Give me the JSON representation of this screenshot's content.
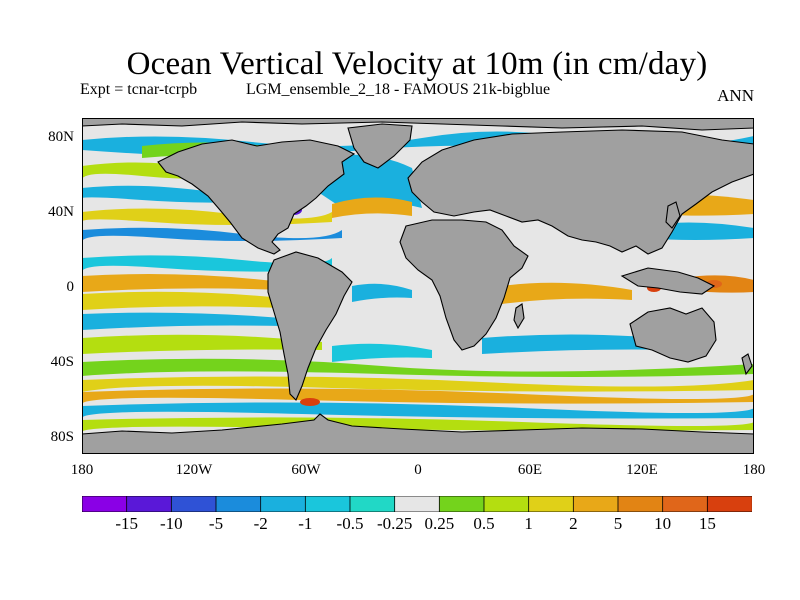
{
  "title": "Ocean Vertical Velocity at 10m (in cm/day)",
  "experiment": "Expt = tcnar-tcrpb",
  "run": "LGM_ensemble_2_18 - FAMOUS 21k-bigblue",
  "season": "ANN",
  "lat_labels": [
    "80N",
    "40N",
    "0",
    "40S",
    "80S"
  ],
  "lon_labels": [
    "180",
    "120W",
    "60W",
    "0",
    "60E",
    "120E",
    "180"
  ],
  "colorbar": {
    "labels": [
      "-15",
      "-10",
      "-5",
      "-2",
      "-1",
      "-0.5",
      "-0.25",
      "0.25",
      "0.5",
      "1",
      "2",
      "5",
      "10",
      "15"
    ],
    "colors": [
      "#8a00e6",
      "#5a18d8",
      "#2f52d6",
      "#1b8cdc",
      "#1ab0de",
      "#1ac6dc",
      "#21d8c6",
      "#e6e6e6",
      "#74d31c",
      "#b4de10",
      "#e0d018",
      "#e8a818",
      "#e28414",
      "#e0661a",
      "#d8400e"
    ]
  },
  "land_color": "#a0a0a0",
  "map_extent": {
    "lon": [
      -180,
      180
    ],
    "lat": [
      -90,
      90
    ]
  }
}
